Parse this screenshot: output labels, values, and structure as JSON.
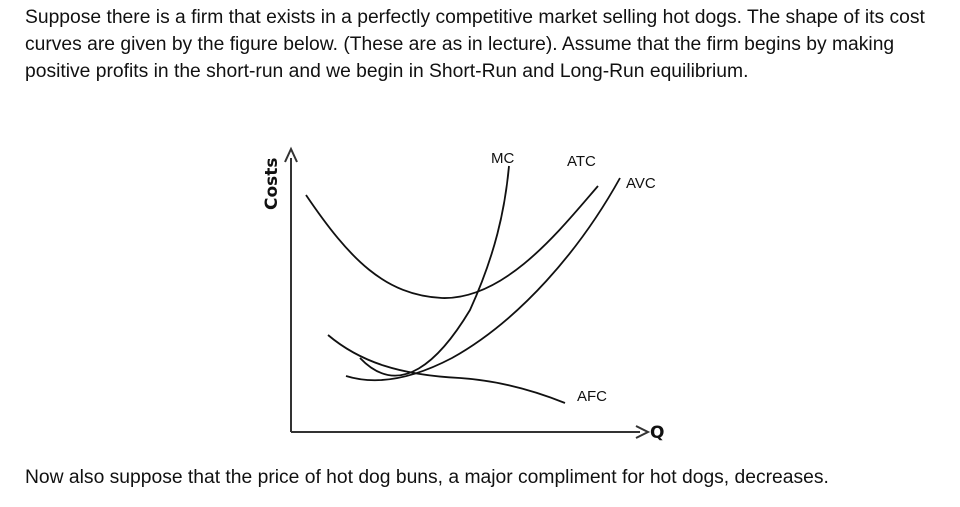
{
  "question": {
    "intro": "Suppose there is a firm that exists in a perfectly competitive market selling hot dogs. The shape of its cost curves are given by the figure below. (These are as in lecture). Assume that the firm begins by making positive profits in the short-run and we begin in Short-Run and Long-Run equilibrium.",
    "outro": "Now also suppose that the price of hot dog buns, a major compliment for hot dogs, decreases."
  },
  "figure": {
    "y_axis_label": "Costs",
    "x_axis_label": "Q",
    "curves": {
      "mc": "MC",
      "atc": "ATC",
      "avc": "AVC",
      "afc": "AFC"
    }
  }
}
